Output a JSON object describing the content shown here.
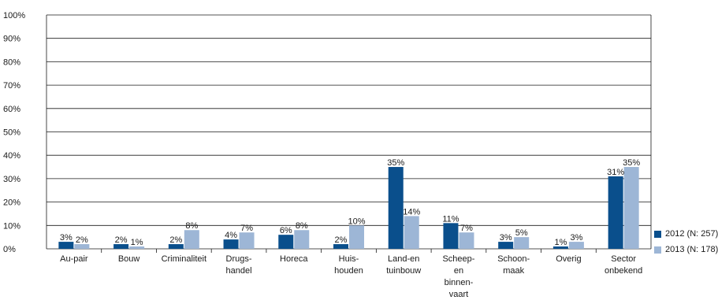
{
  "chart_data": {
    "type": "bar",
    "categories": [
      [
        "Au-pair"
      ],
      [
        "Bouw"
      ],
      [
        "Criminaliteit"
      ],
      [
        "Drugs-",
        "handel"
      ],
      [
        "Horeca"
      ],
      [
        "Huis-",
        "houden"
      ],
      [
        "Land-en",
        "tuinbouw"
      ],
      [
        "Scheep-",
        "en",
        "binnen-",
        "vaart"
      ],
      [
        "Schoon-",
        "maak"
      ],
      [
        "Overig"
      ],
      [
        "Sector",
        "onbekend"
      ]
    ],
    "series": [
      {
        "name": "2012 (N: 257)",
        "color": "#0a4f8c",
        "values": [
          3,
          2,
          2,
          4,
          6,
          2,
          35,
          11,
          3,
          1,
          31
        ],
        "labels": [
          "3%",
          "2%",
          "2%",
          "4%",
          "6%",
          "2%",
          "35%",
          "11%",
          "3%",
          "1%",
          "31%"
        ]
      },
      {
        "name": "2013 (N: 178)",
        "color": "#9db6d6",
        "values": [
          2,
          1,
          8,
          7,
          8,
          10,
          14,
          7,
          5,
          3,
          35
        ],
        "labels": [
          "2%",
          "1%",
          "8%",
          "7%",
          "8%",
          "10%",
          "14%",
          "7%",
          "5%",
          "3%",
          "35%"
        ]
      }
    ],
    "yticks": [
      "0%",
      "10%",
      "20%",
      "30%",
      "40%",
      "50%",
      "60%",
      "70%",
      "80%",
      "90%",
      "100%"
    ],
    "ylim": [
      0,
      100
    ],
    "grid": true,
    "legend_position": "right-bottom"
  }
}
